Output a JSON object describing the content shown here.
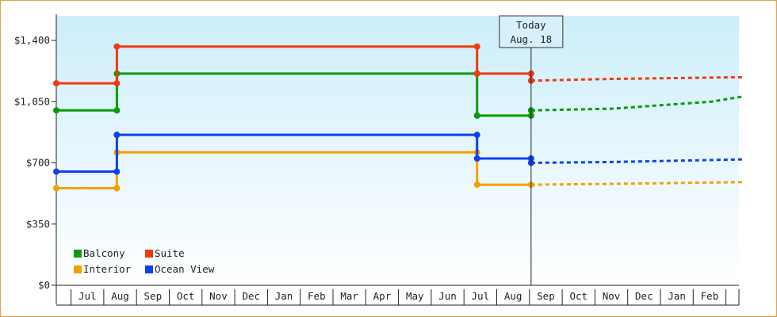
{
  "chart_data": {
    "type": "line",
    "style": "step-line with forecast",
    "y_axis": {
      "ticks": [
        0,
        350,
        700,
        1050,
        1400
      ],
      "tick_labels": [
        "$0",
        "$350",
        "$700",
        "$1,050",
        "$1,400"
      ],
      "ylim": [
        0,
        1400
      ]
    },
    "x_axis": {
      "months": [
        "",
        "Jul",
        "Aug",
        "Sep",
        "Oct",
        "Nov",
        "Dec",
        "Jan",
        "Feb",
        "Mar",
        "Apr",
        "May",
        "Jun",
        "Jul",
        "Aug",
        "Sep",
        "Oct",
        "Nov",
        "Dec",
        "Jan",
        "Feb",
        ""
      ]
    },
    "today_marker": {
      "line1": "Today",
      "line2": "Aug. 18"
    },
    "legend": {
      "position": "bottom-left"
    },
    "grid": false,
    "series": [
      {
        "name": "Balcony",
        "color": "#0a9a0a",
        "history": [
          [
            0.0,
            1000
          ],
          [
            1.85,
            1000
          ],
          [
            1.85,
            1210
          ],
          [
            12.85,
            1210
          ],
          [
            12.85,
            970
          ],
          [
            14.5,
            970
          ],
          [
            14.5,
            1000
          ]
        ],
        "forecast": [
          [
            14.5,
            1000
          ],
          [
            17.0,
            1010
          ],
          [
            20.0,
            1050
          ],
          [
            21.0,
            1080
          ]
        ]
      },
      {
        "name": "Suite",
        "color": "#f03a10",
        "history": [
          [
            0.0,
            1155
          ],
          [
            1.85,
            1155
          ],
          [
            1.85,
            1365
          ],
          [
            12.85,
            1365
          ],
          [
            12.85,
            1210
          ],
          [
            14.5,
            1210
          ],
          [
            14.5,
            1170
          ]
        ],
        "forecast": [
          [
            14.5,
            1170
          ],
          [
            17.0,
            1180
          ],
          [
            21.0,
            1190
          ]
        ]
      },
      {
        "name": "Interior",
        "color": "#f5a000",
        "history": [
          [
            0.0,
            555
          ],
          [
            1.85,
            555
          ],
          [
            1.85,
            760
          ],
          [
            12.85,
            760
          ],
          [
            12.85,
            575
          ],
          [
            14.5,
            575
          ]
        ],
        "forecast": [
          [
            14.5,
            575
          ],
          [
            17.0,
            580
          ],
          [
            21.0,
            590
          ]
        ]
      },
      {
        "name": "Ocean View",
        "color": "#1040f0",
        "history": [
          [
            0.0,
            650
          ],
          [
            1.85,
            650
          ],
          [
            1.85,
            860
          ],
          [
            12.85,
            860
          ],
          [
            12.85,
            725
          ],
          [
            14.5,
            725
          ],
          [
            14.5,
            700
          ]
        ],
        "forecast": [
          [
            14.5,
            700
          ],
          [
            17.0,
            705
          ],
          [
            21.0,
            720
          ]
        ]
      }
    ]
  }
}
